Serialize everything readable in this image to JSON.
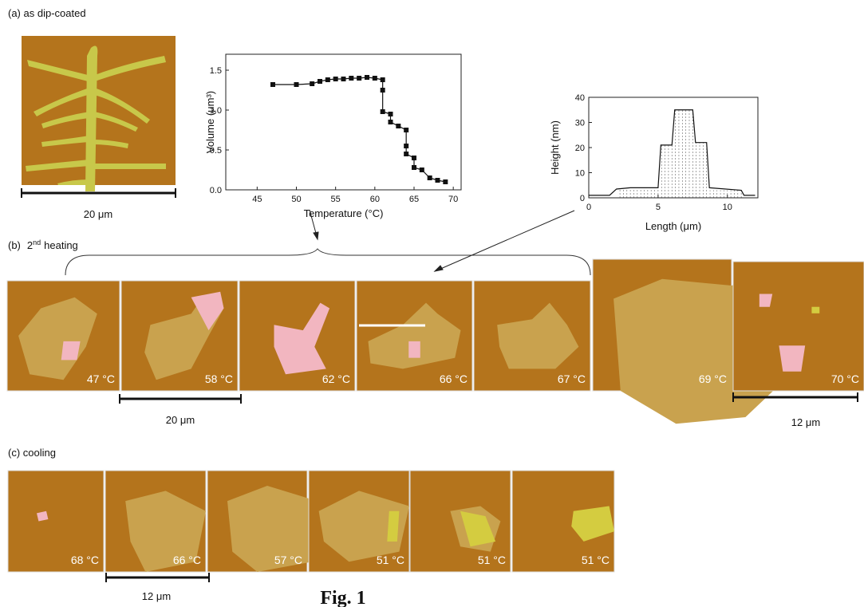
{
  "panel_a": {
    "label": "(a) as dip-coated",
    "scale_bar": "20 μm"
  },
  "panel_b": {
    "label": "(b)",
    "ordinal": "2",
    "ordinal_sup": "nd",
    "label_rest": "heating",
    "temperatures": [
      "47 °C",
      "58 °C",
      "62 °C",
      "66 °C",
      "67 °C",
      "69 °C",
      "70 °C"
    ],
    "scale_bars": [
      "20 μm",
      "12 μm"
    ]
  },
  "panel_c": {
    "label": "(c)  cooling",
    "temperatures": [
      "68 °C",
      "66 °C",
      "57 °C",
      "51 °C",
      "51 °C",
      "51 °C"
    ],
    "scale_bar": "12 μm"
  },
  "caption": "Fig. 1",
  "chart_data": [
    {
      "type": "line",
      "markers": true,
      "x_label": "Temperature (°C)",
      "y_label": "Volume (μm³)",
      "x": [
        47,
        50,
        52,
        53,
        54,
        55,
        56,
        57,
        58,
        59,
        60,
        61,
        61,
        61,
        62,
        62,
        63,
        64,
        64,
        64,
        65,
        65,
        66,
        67,
        68,
        69
      ],
      "values": [
        1.32,
        1.32,
        1.33,
        1.36,
        1.38,
        1.39,
        1.39,
        1.4,
        1.4,
        1.41,
        1.4,
        1.38,
        1.25,
        0.98,
        0.95,
        0.85,
        0.8,
        0.75,
        0.55,
        0.45,
        0.4,
        0.28,
        0.25,
        0.15,
        0.12,
        0.1
      ],
      "color": "#111111",
      "xlim": [
        41,
        71
      ],
      "xticks": [
        45,
        50,
        55,
        60,
        65,
        70
      ],
      "ylim": [
        0,
        1.7
      ],
      "yticks": [
        {
          "value": 0,
          "label": "0.0"
        },
        0.5,
        {
          "value": 1,
          "label": "1.0"
        },
        1.5
      ]
    },
    {
      "type": "line",
      "markers": false,
      "x_label": "Length (μm)",
      "y_label": "Height (nm)",
      "x": [
        0,
        1.5,
        2,
        3,
        5,
        5.2,
        6,
        6.2,
        7.5,
        7.7,
        8.5,
        8.7,
        11,
        11.2,
        12
      ],
      "values": [
        1,
        1,
        3.5,
        4,
        4,
        21,
        21,
        35,
        35,
        22,
        22,
        4,
        3,
        1,
        1
      ],
      "color": "#111111",
      "xlim": [
        0,
        12.2
      ],
      "xticks": [
        0,
        5,
        10
      ],
      "ylim": [
        0,
        40
      ],
      "yticks": [
        0,
        10,
        20,
        30,
        40
      ]
    }
  ]
}
